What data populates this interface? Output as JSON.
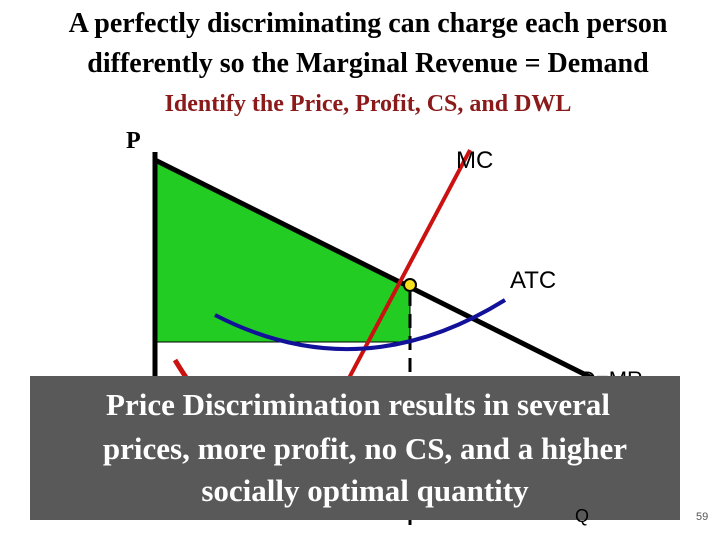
{
  "header": {
    "title_lines": [
      "A perfectly discriminating can charge each person",
      "differently so the Marginal Revenue = Demand"
    ],
    "subtitle": "Identify the Price, Profit, CS, and DWL"
  },
  "diagram": {
    "y_axis_label": "P",
    "x_axis_label": "Q",
    "mc_label": "MC",
    "atc_label": "ATC",
    "demand_label": "D=MR"
  },
  "callout": {
    "lines": [
      "Price Discrimination results in several",
      "prices, more profit, no CS, and a higher",
      "socially optimal quantity"
    ]
  },
  "footer": {
    "page_number": "59"
  }
}
